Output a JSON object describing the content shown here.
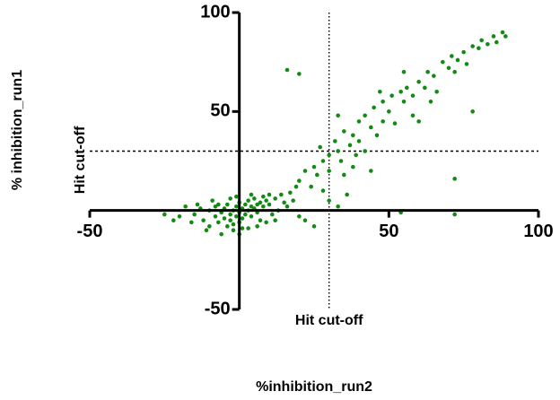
{
  "chart_data": {
    "type": "scatter",
    "x_label": "%inhibition_run2",
    "y_label": "% inhibition_run1",
    "xlim": [
      -50,
      100
    ],
    "ylim": [
      -50,
      100
    ],
    "xticks": [
      -50,
      50,
      100
    ],
    "yticks": [
      -50,
      50,
      100
    ],
    "vlines": [
      {
        "value": 30,
        "label": "Hit cut-off"
      }
    ],
    "hlines": [
      {
        "value": 30,
        "label": "Hit cut-off"
      }
    ],
    "series": [
      {
        "color": "#138a13",
        "x": [
          -15,
          -12,
          -10,
          -10,
          -8,
          -8,
          -7,
          -6,
          -5,
          -5,
          -4,
          -4,
          -3,
          -3,
          -2,
          -2,
          -1,
          -1,
          0,
          0,
          0,
          1,
          1,
          2,
          2,
          3,
          3,
          4,
          4,
          5,
          5,
          6,
          6,
          7,
          8,
          8,
          9,
          10,
          10,
          12,
          12,
          14,
          15,
          -20,
          -18,
          -16,
          -14,
          -11,
          -9,
          -6,
          -3,
          0,
          3,
          6,
          9,
          11,
          13,
          16,
          18,
          20,
          22,
          -13,
          -7,
          -1,
          4,
          7,
          -2,
          1,
          17,
          19,
          20,
          22,
          24,
          25,
          26,
          28,
          28,
          30,
          30,
          32,
          33,
          34,
          35,
          35,
          37,
          38,
          39,
          40,
          40,
          42,
          42,
          44,
          45,
          46,
          48,
          48,
          50,
          51,
          52,
          54,
          55,
          56,
          58,
          58,
          60,
          62,
          63,
          65,
          66,
          68,
          70,
          71,
          73,
          75,
          76,
          78,
          80,
          81,
          83,
          85,
          86,
          88,
          89,
          72,
          64,
          55,
          47,
          38,
          27,
          36,
          44,
          30,
          33,
          16,
          20,
          78,
          72,
          72,
          54,
          33,
          60,
          25,
          -22,
          -25
        ],
        "values": [
          -2,
          -5,
          0,
          -8,
          -3,
          2,
          -6,
          -1,
          -4,
          1,
          -8,
          3,
          -2,
          -5,
          0,
          -10,
          2,
          -3,
          -1,
          4,
          -6,
          1,
          -4,
          3,
          -2,
          0,
          5,
          -3,
          2,
          1,
          6,
          -1,
          3,
          4,
          2,
          7,
          5,
          3,
          8,
          6,
          -5,
          8,
          4,
          -3,
          2,
          -6,
          3,
          -10,
          5,
          -12,
          6,
          -12,
          -9,
          -8,
          -6,
          -2,
          0,
          2,
          5,
          -3,
          -5,
          1,
          3,
          7,
          8,
          -5,
          -7,
          -9,
          9,
          12,
          15,
          20,
          12,
          22,
          18,
          25,
          10,
          28,
          20,
          35,
          30,
          25,
          40,
          18,
          33,
          38,
          28,
          45,
          35,
          48,
          30,
          42,
          52,
          38,
          55,
          45,
          50,
          58,
          44,
          60,
          55,
          62,
          58,
          48,
          65,
          62,
          70,
          68,
          60,
          75,
          72,
          78,
          76,
          80,
          74,
          83,
          82,
          86,
          84,
          88,
          85,
          90,
          88,
          70,
          55,
          70,
          60,
          22,
          32,
          8,
          20,
          5,
          2,
          71,
          69,
          50,
          16,
          -2,
          -1,
          48,
          45,
          -8,
          -5,
          -2
        ]
      }
    ]
  }
}
